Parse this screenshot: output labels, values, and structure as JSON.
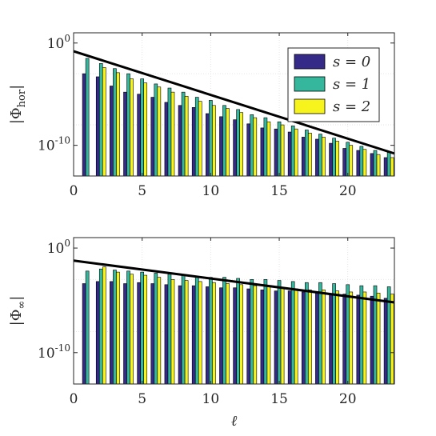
{
  "chart_data": [
    {
      "type": "bar",
      "ylabel": "|Φhor|",
      "yscale": "log",
      "ylim_exponent": [
        -13,
        1
      ],
      "xlim": [
        0,
        23.4
      ],
      "xticks": [
        "0",
        "5",
        "10",
        "15",
        "20"
      ],
      "xtick_values": [
        0,
        5,
        10,
        15,
        20
      ],
      "yticks": [
        {
          "label": "10",
          "exp": "0",
          "value": 0
        },
        {
          "label": "10",
          "exp": "-10",
          "value": -10
        }
      ],
      "grid": true,
      "legend_position": "top-right",
      "x": [
        1,
        2,
        3,
        4,
        5,
        6,
        7,
        8,
        9,
        10,
        11,
        12,
        13,
        14,
        15,
        16,
        17,
        18,
        19,
        20,
        21,
        22,
        23
      ],
      "series": [
        {
          "name": "s = 0",
          "color": "#352a87",
          "log10_values": [
            -3.0,
            -3.3,
            -4.2,
            -4.8,
            -5.0,
            -5.3,
            -5.8,
            -6.1,
            -6.3,
            -6.9,
            -7.2,
            -7.5,
            -7.9,
            -8.3,
            -8.4,
            -8.7,
            -9.2,
            -9.4,
            -9.8,
            -10.3,
            -10.5,
            -10.8,
            -11.2
          ]
        },
        {
          "name": "s = 1",
          "color": "#35b79d",
          "log10_values": [
            -1.5,
            -2.0,
            -2.5,
            -3.0,
            -3.5,
            -4.0,
            -4.4,
            -4.8,
            -5.3,
            -5.6,
            -6.1,
            -6.5,
            -7.0,
            -7.3,
            -7.7,
            -8.1,
            -8.5,
            -8.9,
            -9.3,
            -9.7,
            -10.1,
            -10.5,
            -10.7
          ]
        },
        {
          "name": "s = 2",
          "color": "#f7f41d",
          "log10_values": [
            null,
            -2.4,
            -2.9,
            -3.5,
            -3.9,
            -4.3,
            -4.8,
            -5.2,
            -5.7,
            -6.1,
            -6.4,
            -6.8,
            -7.3,
            -7.7,
            -8.0,
            -8.4,
            -8.8,
            -9.2,
            -9.6,
            -10.0,
            -10.4,
            -10.9,
            -11.2
          ]
        }
      ],
      "envelope": {
        "color": "#000000",
        "x": [
          0,
          23.4
        ],
        "log10_y": [
          -0.8,
          -10.8
        ]
      }
    },
    {
      "type": "bar",
      "ylabel": "|Φ∞|",
      "yscale": "log",
      "ylim_exponent": [
        -13,
        1
      ],
      "xlim": [
        0,
        23.4
      ],
      "xticks": [
        "0",
        "5",
        "10",
        "15",
        "20"
      ],
      "xtick_values": [
        0,
        5,
        10,
        15,
        20
      ],
      "xlabel": "ℓ",
      "yticks": [
        {
          "label": "10",
          "exp": "0",
          "value": 0
        },
        {
          "label": "10",
          "exp": "-10",
          "value": -10
        }
      ],
      "grid": true,
      "x": [
        1,
        2,
        3,
        4,
        5,
        6,
        7,
        8,
        9,
        10,
        11,
        12,
        13,
        14,
        15,
        16,
        17,
        18,
        19,
        20,
        21,
        22,
        23
      ],
      "series": [
        {
          "name": "s = 0",
          "color": "#352a87",
          "log10_values": [
            -3.4,
            -3.2,
            -3.2,
            -3.4,
            -3.3,
            -3.4,
            -3.5,
            -3.6,
            -3.6,
            -3.7,
            -3.8,
            -3.8,
            -3.9,
            -4.0,
            -4.1,
            -4.1,
            -4.2,
            -4.3,
            -4.4,
            -4.4,
            -4.5,
            -4.6,
            -4.8
          ]
        },
        {
          "name": "s = 1",
          "color": "#35b79d",
          "log10_values": [
            -2.2,
            -2.0,
            -2.1,
            -2.2,
            -2.3,
            -2.4,
            -2.5,
            -2.6,
            -2.7,
            -2.8,
            -2.8,
            -2.9,
            -3.0,
            -3.0,
            -3.1,
            -3.2,
            -3.3,
            -3.3,
            -3.4,
            -3.5,
            -3.6,
            -3.6,
            -3.7
          ]
        },
        {
          "name": "s = 2",
          "color": "#f7f41d",
          "log10_values": [
            null,
            -1.8,
            -2.3,
            -2.5,
            -2.6,
            -2.8,
            -3.0,
            -3.1,
            -3.2,
            -3.3,
            -3.4,
            -3.5,
            -3.6,
            -3.7,
            -3.8,
            -3.9,
            -4.0,
            -4.0,
            -4.1,
            -4.2,
            -4.2,
            -4.3,
            -4.4
          ]
        }
      ],
      "envelope": {
        "color": "#000000",
        "x": [
          0,
          23.4
        ],
        "log10_y": [
          -1.2,
          -5.2
        ]
      }
    }
  ]
}
